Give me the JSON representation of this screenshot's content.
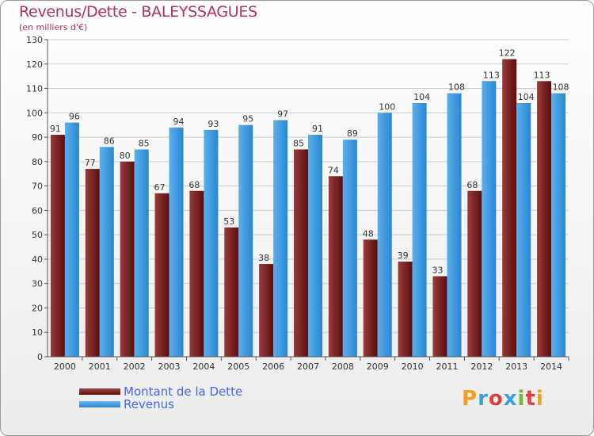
{
  "header": {
    "title": "Revenus/Dette - BALEYSSAGUES",
    "subtitle": "(en milliers d'€)"
  },
  "legend": {
    "debt_label": "Montant de la Dette",
    "revenue_label": "Revenus"
  },
  "logo": {
    "text": "Proxiti",
    "letters": [
      {
        "ch": "P",
        "color": "#f0a020"
      },
      {
        "ch": "r",
        "color": "#3aa0e0"
      },
      {
        "ch": "o",
        "color": "#e04040"
      },
      {
        "ch": "x",
        "color": "#3aa0e0"
      },
      {
        "ch": "i",
        "color": "#70b830"
      },
      {
        "ch": "t",
        "color": "#e04040"
      },
      {
        "ch": "i",
        "color": "#f0a020"
      }
    ]
  },
  "colors": {
    "debt": "#6e1a1a",
    "debt_light": "#9a3a3a",
    "revenue": "#2f8fd8",
    "revenue_light": "#5ab0ee",
    "title": "#b03060",
    "grid": "#cccccc",
    "axis": "#555555"
  },
  "chart_data": {
    "type": "bar",
    "title": "Revenus/Dette - BALEYSSAGUES",
    "subtitle": "(en milliers d'€)",
    "xlabel": "",
    "ylabel": "",
    "ylim": [
      0,
      130
    ],
    "yticks": [
      0,
      10,
      20,
      30,
      40,
      50,
      60,
      70,
      80,
      90,
      100,
      110,
      120,
      130
    ],
    "grid": true,
    "legend_position": "bottom-left",
    "categories": [
      "2000",
      "2001",
      "2002",
      "2003",
      "2004",
      "2005",
      "2006",
      "2007",
      "2008",
      "2009",
      "2010",
      "2011",
      "2012",
      "2013",
      "2014"
    ],
    "series": [
      {
        "name": "Montant de la Dette",
        "color": "#6e1a1a",
        "values": [
          91,
          77,
          80,
          67,
          68,
          53,
          38,
          85,
          74,
          48,
          39,
          33,
          68,
          122,
          113
        ]
      },
      {
        "name": "Revenus",
        "color": "#2f8fd8",
        "values": [
          96,
          86,
          85,
          94,
          93,
          95,
          97,
          91,
          89,
          100,
          104,
          108,
          113,
          104,
          108
        ]
      }
    ]
  }
}
